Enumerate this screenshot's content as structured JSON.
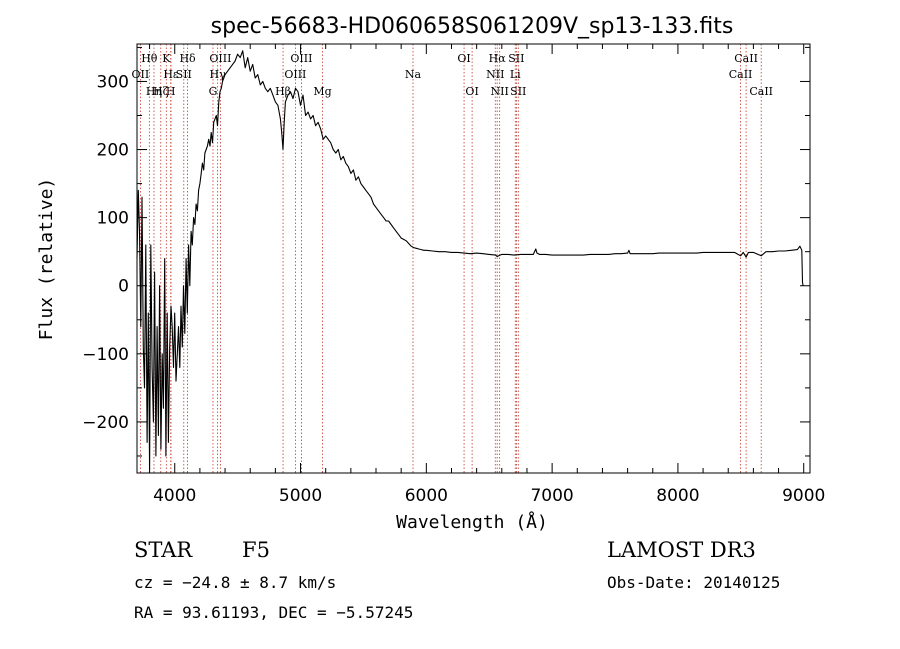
{
  "chart_data": {
    "type": "line",
    "title": "spec-56683-HD060658S061209V_sp13-133.fits",
    "xlabel": "Wavelength (Å)",
    "ylabel": "Flux (relative)",
    "xlim": [
      3700,
      9050
    ],
    "ylim": [
      -275,
      355
    ],
    "x_ticks": [
      {
        "v": 4000,
        "label": "4000"
      },
      {
        "v": 5000,
        "label": "5000"
      },
      {
        "v": 6000,
        "label": "6000"
      },
      {
        "v": 7000,
        "label": "7000"
      },
      {
        "v": 8000,
        "label": "8000"
      },
      {
        "v": 9000,
        "label": "9000"
      }
    ],
    "y_ticks": [
      {
        "v": -200,
        "label": "−200"
      },
      {
        "v": -100,
        "label": "−100"
      },
      {
        "v": 0,
        "label": "0"
      },
      {
        "v": 100,
        "label": "100"
      },
      {
        "v": 200,
        "label": "200"
      },
      {
        "v": 300,
        "label": "300"
      }
    ],
    "lines": [
      {
        "w": 3727,
        "label": "OII",
        "row": 1
      },
      {
        "w": 3798,
        "label": "Hθ",
        "row": 0
      },
      {
        "w": 3835,
        "label": "Hη",
        "row": 2
      },
      {
        "w": 3889,
        "label": "Hζ",
        "row": 2
      },
      {
        "w": 3933,
        "label": "K",
        "row": 0
      },
      {
        "w": 3968,
        "label": "H",
        "row": 2
      },
      {
        "w": 3970,
        "label": "Hε",
        "row": 1
      },
      {
        "w": 4072,
        "label": "SII",
        "row": 1
      },
      {
        "w": 4102,
        "label": "Hδ",
        "row": 0
      },
      {
        "w": 4304,
        "label": "G",
        "row": 2
      },
      {
        "w": 4341,
        "label": "Hγ",
        "row": 1
      },
      {
        "w": 4363,
        "label": "OIII",
        "row": 0
      },
      {
        "w": 4861,
        "label": "Hβ",
        "row": 2
      },
      {
        "w": 4959,
        "label": "OIII",
        "row": 1
      },
      {
        "w": 5007,
        "label": "OIII",
        "row": 0
      },
      {
        "w": 5175,
        "label": "Mg",
        "row": 2
      },
      {
        "w": 5894,
        "label": "Na",
        "row": 1
      },
      {
        "w": 6300,
        "label": "OI",
        "row": 0
      },
      {
        "w": 6364,
        "label": "OI",
        "row": 2
      },
      {
        "w": 6548,
        "label": "NII",
        "row": 1
      },
      {
        "w": 6563,
        "label": "Hα",
        "row": 0
      },
      {
        "w": 6583,
        "label": "NII",
        "row": 2
      },
      {
        "w": 6707,
        "label": "Li",
        "row": 1
      },
      {
        "w": 6716,
        "label": "SII",
        "row": 0
      },
      {
        "w": 6731,
        "label": "SII",
        "row": 2
      },
      {
        "w": 8498,
        "label": "CaII",
        "row": 1
      },
      {
        "w": 8542,
        "label": "CaII",
        "row": 0
      },
      {
        "w": 8662,
        "label": "CaII",
        "row": 2
      }
    ],
    "series": [
      {
        "values": [
          [
            3700,
            40
          ],
          [
            3710,
            140
          ],
          [
            3720,
            80
          ],
          [
            3730,
            -60
          ],
          [
            3740,
            130
          ],
          [
            3750,
            -90
          ],
          [
            3760,
            -150
          ],
          [
            3770,
            60
          ],
          [
            3780,
            -230
          ],
          [
            3790,
            -40
          ],
          [
            3800,
            -270
          ],
          [
            3810,
            60
          ],
          [
            3820,
            -120
          ],
          [
            3830,
            -200
          ],
          [
            3840,
            20
          ],
          [
            3850,
            -250
          ],
          [
            3860,
            -60
          ],
          [
            3870,
            -220
          ],
          [
            3880,
            0
          ],
          [
            3890,
            -240
          ],
          [
            3900,
            -100
          ],
          [
            3910,
            -180
          ],
          [
            3920,
            40
          ],
          [
            3930,
            -250
          ],
          [
            3940,
            -40
          ],
          [
            3950,
            -230
          ],
          [
            3960,
            -90
          ],
          [
            3970,
            -30
          ],
          [
            3980,
            -60
          ],
          [
            3990,
            -120
          ],
          [
            4000,
            -40
          ],
          [
            4010,
            -140
          ],
          [
            4020,
            -100
          ],
          [
            4030,
            -60
          ],
          [
            4040,
            -120
          ],
          [
            4050,
            -30
          ],
          [
            4060,
            -90
          ],
          [
            4070,
            0
          ],
          [
            4080,
            -70
          ],
          [
            4090,
            40
          ],
          [
            4100,
            -40
          ],
          [
            4110,
            60
          ],
          [
            4120,
            0
          ],
          [
            4130,
            80
          ],
          [
            4140,
            60
          ],
          [
            4150,
            100
          ],
          [
            4160,
            90
          ],
          [
            4170,
            120
          ],
          [
            4180,
            110
          ],
          [
            4190,
            140
          ],
          [
            4200,
            150
          ],
          [
            4210,
            165
          ],
          [
            4220,
            180
          ],
          [
            4230,
            170
          ],
          [
            4240,
            195
          ],
          [
            4250,
            200
          ],
          [
            4260,
            205
          ],
          [
            4270,
            215
          ],
          [
            4280,
            205
          ],
          [
            4290,
            225
          ],
          [
            4300,
            210
          ],
          [
            4310,
            240
          ],
          [
            4320,
            245
          ],
          [
            4330,
            250
          ],
          [
            4340,
            235
          ],
          [
            4350,
            270
          ],
          [
            4360,
            285
          ],
          [
            4370,
            290
          ],
          [
            4380,
            300
          ],
          [
            4390,
            305
          ],
          [
            4400,
            310
          ],
          [
            4420,
            315
          ],
          [
            4440,
            320
          ],
          [
            4460,
            325
          ],
          [
            4480,
            330
          ],
          [
            4500,
            340
          ],
          [
            4520,
            335
          ],
          [
            4540,
            345
          ],
          [
            4560,
            320
          ],
          [
            4580,
            335
          ],
          [
            4600,
            315
          ],
          [
            4620,
            325
          ],
          [
            4640,
            305
          ],
          [
            4660,
            310
          ],
          [
            4680,
            295
          ],
          [
            4700,
            300
          ],
          [
            4720,
            290
          ],
          [
            4740,
            285
          ],
          [
            4760,
            290
          ],
          [
            4780,
            280
          ],
          [
            4800,
            270
          ],
          [
            4820,
            265
          ],
          [
            4840,
            245
          ],
          [
            4850,
            225
          ],
          [
            4861,
            200
          ],
          [
            4870,
            240
          ],
          [
            4880,
            270
          ],
          [
            4900,
            280
          ],
          [
            4920,
            285
          ],
          [
            4940,
            275
          ],
          [
            4960,
            290
          ],
          [
            4980,
            285
          ],
          [
            5000,
            265
          ],
          [
            5020,
            280
          ],
          [
            5040,
            250
          ],
          [
            5060,
            255
          ],
          [
            5080,
            245
          ],
          [
            5100,
            250
          ],
          [
            5120,
            235
          ],
          [
            5140,
            240
          ],
          [
            5160,
            230
          ],
          [
            5180,
            215
          ],
          [
            5200,
            220
          ],
          [
            5220,
            215
          ],
          [
            5240,
            210
          ],
          [
            5260,
            200
          ],
          [
            5280,
            195
          ],
          [
            5300,
            200
          ],
          [
            5320,
            185
          ],
          [
            5340,
            190
          ],
          [
            5360,
            180
          ],
          [
            5380,
            175
          ],
          [
            5400,
            165
          ],
          [
            5420,
            170
          ],
          [
            5440,
            155
          ],
          [
            5460,
            160
          ],
          [
            5480,
            150
          ],
          [
            5500,
            145
          ],
          [
            5520,
            140
          ],
          [
            5540,
            135
          ],
          [
            5560,
            130
          ],
          [
            5580,
            120
          ],
          [
            5600,
            115
          ],
          [
            5620,
            110
          ],
          [
            5640,
            105
          ],
          [
            5660,
            100
          ],
          [
            5680,
            95
          ],
          [
            5700,
            95
          ],
          [
            5720,
            90
          ],
          [
            5740,
            85
          ],
          [
            5760,
            80
          ],
          [
            5780,
            75
          ],
          [
            5800,
            70
          ],
          [
            5820,
            68
          ],
          [
            5840,
            66
          ],
          [
            5860,
            62
          ],
          [
            5880,
            58
          ],
          [
            5900,
            56
          ],
          [
            5920,
            55
          ],
          [
            5940,
            54
          ],
          [
            5960,
            53
          ],
          [
            5980,
            52
          ],
          [
            6000,
            52
          ],
          [
            6050,
            51
          ],
          [
            6100,
            50
          ],
          [
            6150,
            50
          ],
          [
            6200,
            49
          ],
          [
            6250,
            49
          ],
          [
            6300,
            48
          ],
          [
            6350,
            47
          ],
          [
            6400,
            48
          ],
          [
            6450,
            47
          ],
          [
            6500,
            46
          ],
          [
            6550,
            45
          ],
          [
            6563,
            43
          ],
          [
            6600,
            46
          ],
          [
            6650,
            46
          ],
          [
            6700,
            45
          ],
          [
            6750,
            46
          ],
          [
            6800,
            46
          ],
          [
            6850,
            46
          ],
          [
            6870,
            54
          ],
          [
            6880,
            48
          ],
          [
            6900,
            46
          ],
          [
            6950,
            46
          ],
          [
            7000,
            45
          ],
          [
            7050,
            45
          ],
          [
            7100,
            45
          ],
          [
            7150,
            45
          ],
          [
            7200,
            45
          ],
          [
            7250,
            45
          ],
          [
            7300,
            46
          ],
          [
            7350,
            46
          ],
          [
            7400,
            46
          ],
          [
            7450,
            46
          ],
          [
            7500,
            47
          ],
          [
            7550,
            47
          ],
          [
            7600,
            48
          ],
          [
            7610,
            52
          ],
          [
            7620,
            47
          ],
          [
            7650,
            47
          ],
          [
            7700,
            47
          ],
          [
            7750,
            47
          ],
          [
            7800,
            47
          ],
          [
            7850,
            48
          ],
          [
            7900,
            48
          ],
          [
            7950,
            48
          ],
          [
            8000,
            48
          ],
          [
            8050,
            48
          ],
          [
            8100,
            48
          ],
          [
            8150,
            48
          ],
          [
            8200,
            49
          ],
          [
            8250,
            49
          ],
          [
            8300,
            49
          ],
          [
            8350,
            49
          ],
          [
            8400,
            49
          ],
          [
            8450,
            49
          ],
          [
            8498,
            44
          ],
          [
            8520,
            49
          ],
          [
            8542,
            42
          ],
          [
            8560,
            49
          ],
          [
            8600,
            49
          ],
          [
            8662,
            44
          ],
          [
            8700,
            50
          ],
          [
            8750,
            50
          ],
          [
            8800,
            51
          ],
          [
            8850,
            51
          ],
          [
            8900,
            52
          ],
          [
            8950,
            53
          ],
          [
            8970,
            58
          ],
          [
            8985,
            52
          ],
          [
            8990,
            5
          ],
          [
            8995,
            0
          ]
        ]
      }
    ]
  },
  "info": {
    "object_class": "STAR",
    "subclass": "F5",
    "survey": "LAMOST DR3",
    "cz": "cz = −24.8 ± 8.7 km/s",
    "obs_date": "Obs-Date: 20140125",
    "coords": "RA =  93.61193, DEC =  −5.57245"
  }
}
